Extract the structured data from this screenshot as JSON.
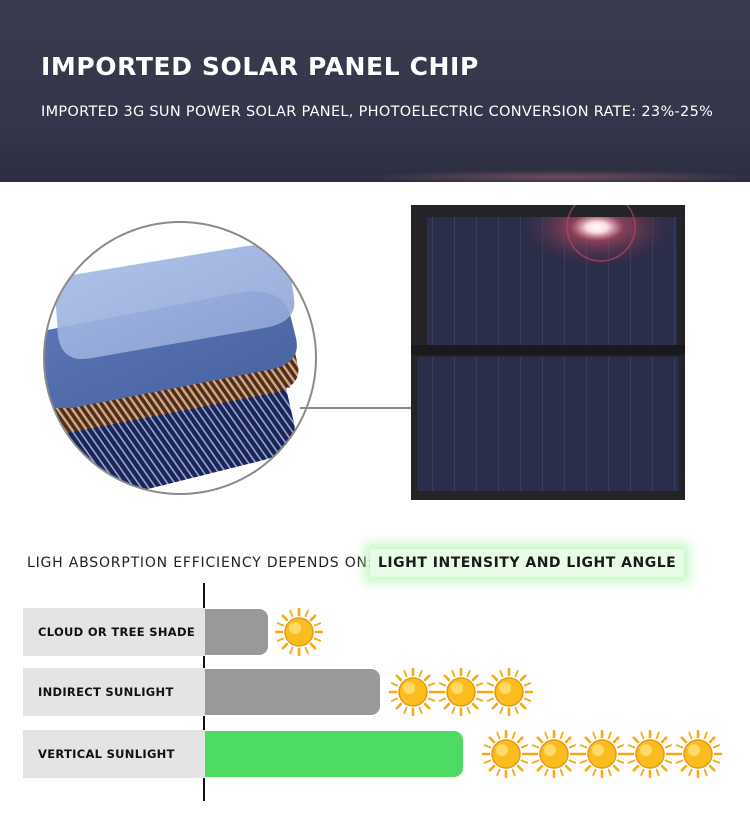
{
  "banner": {
    "title": "IMPORTED SOLAR PANEL CHIP",
    "subtitle": "IMPORTED 3G SUN POWER SOLAR PANEL,  PHOTOELECTRIC CONVERSION RATE: 23%-25%"
  },
  "absorption": {
    "label": "LIGH ABSORPTION EFFICIENCY DEPENDS ON:",
    "highlight": "LIGHT INTENSITY AND LIGHT ANGLE"
  },
  "comparison": [
    {
      "label": "CLOUD OR TREE SHADE",
      "suns": 1,
      "bar_color": "#999999"
    },
    {
      "label": "INDIRECT SUNLIGHT",
      "suns": 3,
      "bar_color": "#999999"
    },
    {
      "label": "VERTICAL SUNLIGHT",
      "suns": 5,
      "bar_color": "#4ddb63"
    }
  ],
  "colors": {
    "banner_background": "#36374b",
    "highlight_glow": "#aaf5aa",
    "bar_gray": "#999999",
    "bar_green": "#4ddb63",
    "sun": "#f7a817"
  },
  "icons": {
    "sun": "sun-icon",
    "layers": "solar-chip-layers-icon"
  }
}
